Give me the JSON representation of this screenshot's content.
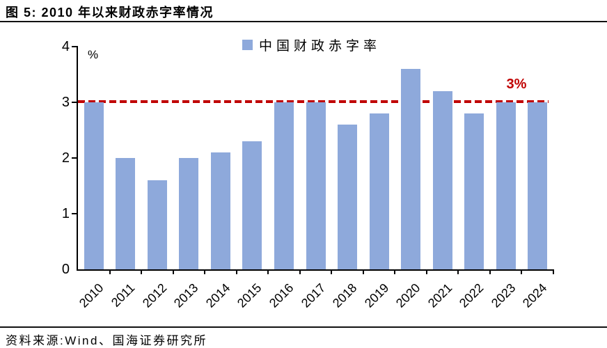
{
  "header": {
    "title": "图 5:  2010 年以来财政赤字率情况"
  },
  "legend": {
    "label": "中国财政赤字率"
  },
  "chart_data": {
    "type": "bar",
    "title": "2010 年以来财政赤字率情况",
    "series_name": "中国财政赤字率",
    "categories": [
      "2010",
      "2011",
      "2012",
      "2013",
      "2014",
      "2015",
      "2016",
      "2017",
      "2018",
      "2019",
      "2020",
      "2021",
      "2022",
      "2023",
      "2024"
    ],
    "values": [
      3.0,
      2.0,
      1.6,
      2.0,
      2.1,
      2.3,
      3.0,
      3.0,
      2.6,
      2.8,
      3.6,
      3.2,
      2.8,
      3.0,
      3.0
    ],
    "unit_label": "%",
    "xlabel": "",
    "ylabel": "%",
    "ylim": [
      0,
      4
    ],
    "yticks": [
      0,
      1,
      2,
      3,
      4
    ],
    "grid": false,
    "legend_position": "top-center",
    "bar_color": "#8EA9DB",
    "axis_color": "#000000",
    "reference_line": {
      "value": 3,
      "label": "3%",
      "color": "#C00000",
      "style": "dashed"
    }
  },
  "footer": {
    "source": "资料来源:Wind、国海证券研究所"
  }
}
